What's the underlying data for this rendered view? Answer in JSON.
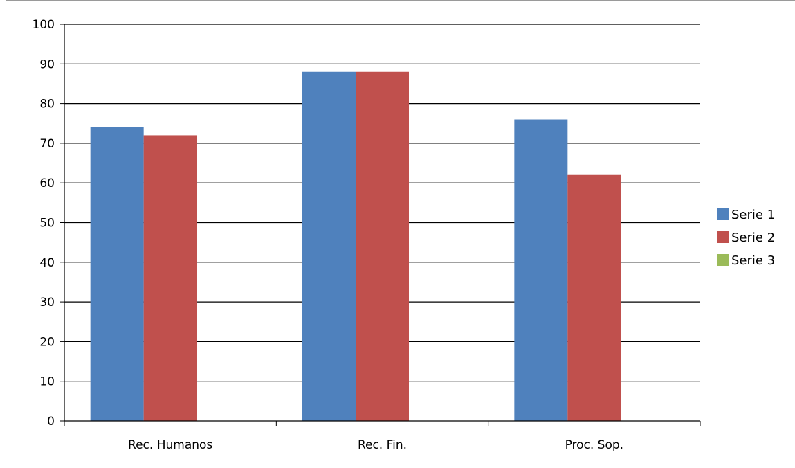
{
  "chart_data": {
    "type": "bar",
    "title": "",
    "xlabel": "",
    "ylabel": "",
    "categories": [
      "Rec. Humanos",
      "Rec. Fin.",
      "Proc. Sop."
    ],
    "series": [
      {
        "name": "Serie 1",
        "values": [
          74,
          88,
          76
        ],
        "color": "#4f81bd"
      },
      {
        "name": "Serie 2",
        "values": [
          72,
          88,
          62
        ],
        "color": "#c0504d"
      },
      {
        "name": "Serie 3",
        "values": [
          0,
          0,
          0
        ],
        "color": "#9bbb59"
      }
    ],
    "ylim": [
      0,
      100
    ],
    "yticks": [
      0,
      10,
      20,
      30,
      40,
      50,
      60,
      70,
      80,
      90,
      100
    ],
    "grid": true,
    "legend_position": "right"
  }
}
